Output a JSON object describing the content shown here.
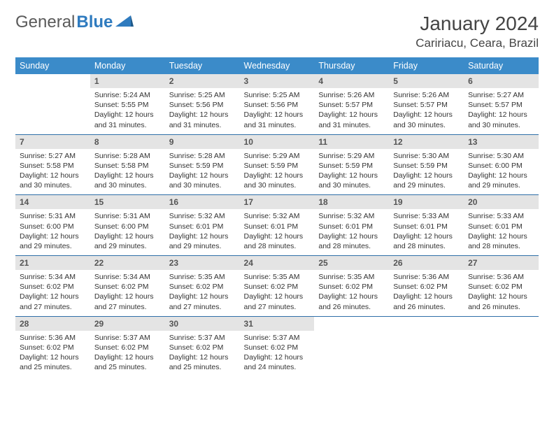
{
  "brand": {
    "part1": "General",
    "part2": "Blue"
  },
  "title": "January 2024",
  "location": "Caririacu, Ceara, Brazil",
  "colors": {
    "header_bg": "#3b8bc9",
    "header_text": "#ffffff",
    "daynum_bg": "#e4e4e4",
    "divider": "#2f6fa8",
    "text": "#333333",
    "logo_gray": "#5a5a5a",
    "logo_blue": "#2f7bbf"
  },
  "typography": {
    "title_fontsize": 28,
    "location_fontsize": 17,
    "header_fontsize": 12.5,
    "daynum_fontsize": 12,
    "body_fontsize": 10.5
  },
  "weekdays": [
    "Sunday",
    "Monday",
    "Tuesday",
    "Wednesday",
    "Thursday",
    "Friday",
    "Saturday"
  ],
  "weeks": [
    [
      null,
      {
        "n": "1",
        "sr": "Sunrise: 5:24 AM",
        "ss": "Sunset: 5:55 PM",
        "dl": "Daylight: 12 hours and 31 minutes."
      },
      {
        "n": "2",
        "sr": "Sunrise: 5:25 AM",
        "ss": "Sunset: 5:56 PM",
        "dl": "Daylight: 12 hours and 31 minutes."
      },
      {
        "n": "3",
        "sr": "Sunrise: 5:25 AM",
        "ss": "Sunset: 5:56 PM",
        "dl": "Daylight: 12 hours and 31 minutes."
      },
      {
        "n": "4",
        "sr": "Sunrise: 5:26 AM",
        "ss": "Sunset: 5:57 PM",
        "dl": "Daylight: 12 hours and 31 minutes."
      },
      {
        "n": "5",
        "sr": "Sunrise: 5:26 AM",
        "ss": "Sunset: 5:57 PM",
        "dl": "Daylight: 12 hours and 30 minutes."
      },
      {
        "n": "6",
        "sr": "Sunrise: 5:27 AM",
        "ss": "Sunset: 5:57 PM",
        "dl": "Daylight: 12 hours and 30 minutes."
      }
    ],
    [
      {
        "n": "7",
        "sr": "Sunrise: 5:27 AM",
        "ss": "Sunset: 5:58 PM",
        "dl": "Daylight: 12 hours and 30 minutes."
      },
      {
        "n": "8",
        "sr": "Sunrise: 5:28 AM",
        "ss": "Sunset: 5:58 PM",
        "dl": "Daylight: 12 hours and 30 minutes."
      },
      {
        "n": "9",
        "sr": "Sunrise: 5:28 AM",
        "ss": "Sunset: 5:59 PM",
        "dl": "Daylight: 12 hours and 30 minutes."
      },
      {
        "n": "10",
        "sr": "Sunrise: 5:29 AM",
        "ss": "Sunset: 5:59 PM",
        "dl": "Daylight: 12 hours and 30 minutes."
      },
      {
        "n": "11",
        "sr": "Sunrise: 5:29 AM",
        "ss": "Sunset: 5:59 PM",
        "dl": "Daylight: 12 hours and 30 minutes."
      },
      {
        "n": "12",
        "sr": "Sunrise: 5:30 AM",
        "ss": "Sunset: 5:59 PM",
        "dl": "Daylight: 12 hours and 29 minutes."
      },
      {
        "n": "13",
        "sr": "Sunrise: 5:30 AM",
        "ss": "Sunset: 6:00 PM",
        "dl": "Daylight: 12 hours and 29 minutes."
      }
    ],
    [
      {
        "n": "14",
        "sr": "Sunrise: 5:31 AM",
        "ss": "Sunset: 6:00 PM",
        "dl": "Daylight: 12 hours and 29 minutes."
      },
      {
        "n": "15",
        "sr": "Sunrise: 5:31 AM",
        "ss": "Sunset: 6:00 PM",
        "dl": "Daylight: 12 hours and 29 minutes."
      },
      {
        "n": "16",
        "sr": "Sunrise: 5:32 AM",
        "ss": "Sunset: 6:01 PM",
        "dl": "Daylight: 12 hours and 29 minutes."
      },
      {
        "n": "17",
        "sr": "Sunrise: 5:32 AM",
        "ss": "Sunset: 6:01 PM",
        "dl": "Daylight: 12 hours and 28 minutes."
      },
      {
        "n": "18",
        "sr": "Sunrise: 5:32 AM",
        "ss": "Sunset: 6:01 PM",
        "dl": "Daylight: 12 hours and 28 minutes."
      },
      {
        "n": "19",
        "sr": "Sunrise: 5:33 AM",
        "ss": "Sunset: 6:01 PM",
        "dl": "Daylight: 12 hours and 28 minutes."
      },
      {
        "n": "20",
        "sr": "Sunrise: 5:33 AM",
        "ss": "Sunset: 6:01 PM",
        "dl": "Daylight: 12 hours and 28 minutes."
      }
    ],
    [
      {
        "n": "21",
        "sr": "Sunrise: 5:34 AM",
        "ss": "Sunset: 6:02 PM",
        "dl": "Daylight: 12 hours and 27 minutes."
      },
      {
        "n": "22",
        "sr": "Sunrise: 5:34 AM",
        "ss": "Sunset: 6:02 PM",
        "dl": "Daylight: 12 hours and 27 minutes."
      },
      {
        "n": "23",
        "sr": "Sunrise: 5:35 AM",
        "ss": "Sunset: 6:02 PM",
        "dl": "Daylight: 12 hours and 27 minutes."
      },
      {
        "n": "24",
        "sr": "Sunrise: 5:35 AM",
        "ss": "Sunset: 6:02 PM",
        "dl": "Daylight: 12 hours and 27 minutes."
      },
      {
        "n": "25",
        "sr": "Sunrise: 5:35 AM",
        "ss": "Sunset: 6:02 PM",
        "dl": "Daylight: 12 hours and 26 minutes."
      },
      {
        "n": "26",
        "sr": "Sunrise: 5:36 AM",
        "ss": "Sunset: 6:02 PM",
        "dl": "Daylight: 12 hours and 26 minutes."
      },
      {
        "n": "27",
        "sr": "Sunrise: 5:36 AM",
        "ss": "Sunset: 6:02 PM",
        "dl": "Daylight: 12 hours and 26 minutes."
      }
    ],
    [
      {
        "n": "28",
        "sr": "Sunrise: 5:36 AM",
        "ss": "Sunset: 6:02 PM",
        "dl": "Daylight: 12 hours and 25 minutes."
      },
      {
        "n": "29",
        "sr": "Sunrise: 5:37 AM",
        "ss": "Sunset: 6:02 PM",
        "dl": "Daylight: 12 hours and 25 minutes."
      },
      {
        "n": "30",
        "sr": "Sunrise: 5:37 AM",
        "ss": "Sunset: 6:02 PM",
        "dl": "Daylight: 12 hours and 25 minutes."
      },
      {
        "n": "31",
        "sr": "Sunrise: 5:37 AM",
        "ss": "Sunset: 6:02 PM",
        "dl": "Daylight: 12 hours and 24 minutes."
      },
      null,
      null,
      null
    ]
  ]
}
